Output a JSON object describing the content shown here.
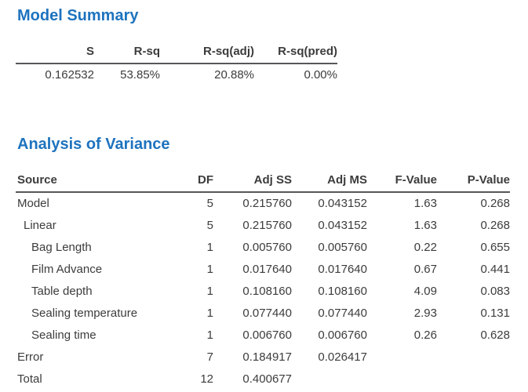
{
  "colors": {
    "heading_accent": "#1e73be",
    "table_text": "#3c3c3c",
    "header_rule": "#57575a"
  },
  "model_summary": {
    "title": "Model Summary",
    "columns": [
      "S",
      "R-sq",
      "R-sq(adj)",
      "R-sq(pred)"
    ],
    "rows": [
      [
        "0.162532",
        "53.85%",
        "20.88%",
        "0.00%"
      ]
    ]
  },
  "anova": {
    "title": "Analysis of Variance",
    "columns": [
      "Source",
      "DF",
      "Adj SS",
      "Adj MS",
      "F-Value",
      "P-Value"
    ],
    "rows": [
      {
        "source": "Model",
        "indent": 0,
        "values": [
          "5",
          "0.215760",
          "0.043152",
          "1.63",
          "0.268"
        ]
      },
      {
        "source": "Linear",
        "indent": 1,
        "values": [
          "5",
          "0.215760",
          "0.043152",
          "1.63",
          "0.268"
        ]
      },
      {
        "source": "Bag Length",
        "indent": 2,
        "values": [
          "1",
          "0.005760",
          "0.005760",
          "0.22",
          "0.655"
        ]
      },
      {
        "source": "Film Advance",
        "indent": 2,
        "values": [
          "1",
          "0.017640",
          "0.017640",
          "0.67",
          "0.441"
        ]
      },
      {
        "source": "Table depth",
        "indent": 2,
        "values": [
          "1",
          "0.108160",
          "0.108160",
          "4.09",
          "0.083"
        ]
      },
      {
        "source": "Sealing temperature",
        "indent": 2,
        "values": [
          "1",
          "0.077440",
          "0.077440",
          "2.93",
          "0.131"
        ]
      },
      {
        "source": "Sealing time",
        "indent": 2,
        "values": [
          "1",
          "0.006760",
          "0.006760",
          "0.26",
          "0.628"
        ]
      },
      {
        "source": "Error",
        "indent": 0,
        "values": [
          "7",
          "0.184917",
          "0.026417",
          "",
          ""
        ]
      },
      {
        "source": "Total",
        "indent": 0,
        "values": [
          "12",
          "0.400677",
          "",
          "",
          ""
        ]
      }
    ]
  }
}
